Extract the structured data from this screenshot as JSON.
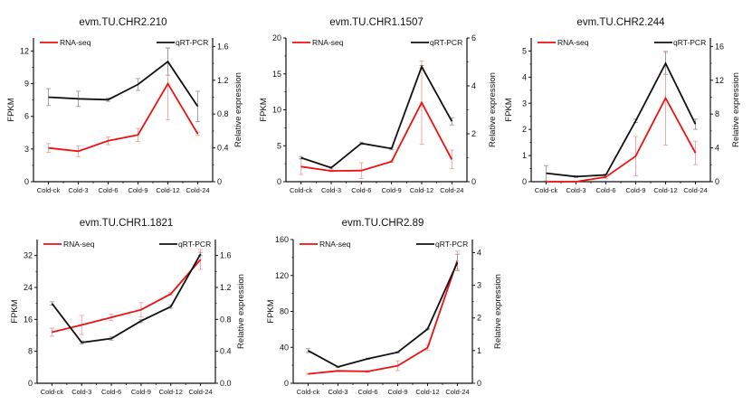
{
  "colors": {
    "rna": "#ee1111",
    "qpcr": "#111111",
    "rna_err": "#f4a0a0",
    "qpcr_err": "#9a9a9a"
  },
  "chart_data": [
    {
      "type": "line",
      "title": "evm.TU.CHR2.210",
      "categories": [
        "Cold-ck",
        "Cold-3",
        "Cold-6",
        "Cold-9",
        "Cold-12",
        "Cold-24"
      ],
      "ylabel": "FPKM",
      "ylabel_right": "Relative expression",
      "ylim": [
        0,
        13.2
      ],
      "yticks": [
        0,
        3,
        6,
        9,
        12
      ],
      "ytick_labels": [
        "0",
        "3",
        "6",
        "9",
        "12"
      ],
      "ylim_right": [
        0,
        1.7
      ],
      "yticks_right": [
        0,
        0.4,
        0.8,
        1.2,
        1.6
      ],
      "ytick_labels_right": [
        "0",
        "0.4",
        "0.8",
        "1.2",
        "1.6"
      ],
      "legend": [
        "RNA-seq",
        "qRT-PCR"
      ],
      "legend_position": "top",
      "series": [
        {
          "name": "RNA-seq",
          "axis": "left",
          "values": [
            3.1,
            2.8,
            3.75,
            4.3,
            9.0,
            4.4
          ],
          "errors": [
            0.4,
            0.5,
            0.35,
            0.6,
            3.3,
            0.15
          ]
        },
        {
          "name": "qRT-PCR",
          "axis": "right",
          "values": [
            1.0,
            0.98,
            0.97,
            1.15,
            1.42,
            0.89
          ],
          "errors": [
            0.1,
            0.09,
            0.02,
            0.07,
            0.16,
            0.18
          ]
        }
      ]
    },
    {
      "type": "line",
      "title": "evm.TU.CHR1.1507",
      "categories": [
        "Cold-ck",
        "Cold-3",
        "Cold-6",
        "Cold-9",
        "Cold-12",
        "Cold-24"
      ],
      "ylabel": "FPKM",
      "ylabel_right": "Relative expression",
      "ylim": [
        0,
        20
      ],
      "yticks": [
        0,
        5,
        10,
        15,
        20
      ],
      "ytick_labels": [
        "0",
        "5",
        "10",
        "15",
        "20"
      ],
      "ylim_right": [
        0,
        6
      ],
      "yticks_right": [
        0,
        2,
        4,
        6
      ],
      "ytick_labels_right": [
        "0",
        "2",
        "4",
        "6"
      ],
      "legend": [
        "RNA-seq",
        "qRT-PCR"
      ],
      "legend_position": "top",
      "series": [
        {
          "name": "RNA-seq",
          "axis": "left",
          "values": [
            2.1,
            1.5,
            1.55,
            2.8,
            11.0,
            3.1
          ],
          "errors": [
            1.1,
            0.1,
            1.1,
            0.1,
            5.8,
            1.3
          ]
        },
        {
          "name": "qRT-PCR",
          "axis": "right",
          "values": [
            1.0,
            0.58,
            1.6,
            1.38,
            4.8,
            2.52
          ],
          "errors": [
            0.05,
            0.05,
            0.05,
            0.05,
            0.05,
            0.15
          ]
        }
      ]
    },
    {
      "type": "line",
      "title": "evm.TU.CHR2.244",
      "categories": [
        "Cold-ck",
        "Cold-3",
        "Cold-6",
        "Cold-9",
        "Cold-12",
        "Cold-24"
      ],
      "ylabel": "FPKM",
      "ylabel_right": "Relative expression",
      "ylim": [
        0,
        5.5
      ],
      "yticks": [
        0,
        1,
        2,
        3,
        4,
        5
      ],
      "ytick_labels": [
        "0",
        "1",
        "2",
        "3",
        "4",
        "5"
      ],
      "ylim_right": [
        0,
        17
      ],
      "yticks_right": [
        0,
        4,
        8,
        12,
        16
      ],
      "ytick_labels_right": [
        "0",
        "4",
        "8",
        "12",
        "16"
      ],
      "legend": [
        "RNA-seq",
        "qRT-PCR"
      ],
      "legend_position": "top",
      "series": [
        {
          "name": "RNA-seq",
          "axis": "left",
          "values": [
            0.0,
            0.0,
            0.18,
            0.98,
            3.2,
            1.1
          ],
          "errors": [
            0.0,
            0.0,
            0.05,
            0.75,
            1.8,
            0.45
          ]
        },
        {
          "name": "qRT-PCR",
          "axis": "right",
          "values": [
            1.0,
            0.6,
            0.8,
            7.2,
            14.0,
            6.8
          ],
          "errors": [
            0.9,
            0.1,
            0.1,
            0.2,
            1.3,
            0.6
          ]
        }
      ]
    },
    {
      "type": "line",
      "title": "evm.TU.CHR1.1821",
      "categories": [
        "Cold-ck",
        "Cold-3",
        "Cold-6",
        "Cold-9",
        "Cold-12",
        "Cold-24"
      ],
      "ylabel": "FPKM",
      "ylabel_right": "Relative expression",
      "ylim": [
        0,
        36
      ],
      "yticks": [
        0,
        8,
        16,
        24,
        32
      ],
      "ytick_labels": [
        "0",
        "8",
        "16",
        "24",
        "32"
      ],
      "ylim_right": [
        0,
        1.8
      ],
      "yticks_right": [
        0,
        0.4,
        0.8,
        1.2,
        1.6
      ],
      "ytick_labels_right": [
        "0.0",
        "0.4",
        "0.8",
        "1.2",
        "1.6"
      ],
      "legend": [
        "RNA-seq",
        "qRT-PCR"
      ],
      "legend_position": "top",
      "series": [
        {
          "name": "RNA-seq",
          "axis": "left",
          "values": [
            12.8,
            14.6,
            16.5,
            18.4,
            22.4,
            31.0
          ],
          "errors": [
            1.0,
            2.4,
            0.8,
            1.8,
            0.3,
            2.5
          ]
        },
        {
          "name": "qRT-PCR",
          "axis": "right",
          "values": [
            1.0,
            0.51,
            0.56,
            0.78,
            0.96,
            1.62
          ],
          "errors": [
            0.02,
            0.02,
            0.02,
            0.02,
            0.02,
            0.02
          ]
        }
      ]
    },
    {
      "type": "line",
      "title": "evm.TU.CHR2.89",
      "categories": [
        "Cold-ck",
        "Cold-3",
        "Cold-6",
        "Cold-9",
        "Cold-12",
        "Cold-24"
      ],
      "ylabel": "FPKM",
      "ylabel_right": "Relative expression",
      "ylim": [
        0,
        160
      ],
      "yticks": [
        0,
        40,
        80,
        120,
        160
      ],
      "ytick_labels": [
        "0",
        "40",
        "80",
        "120",
        "160"
      ],
      "ylim_right": [
        0,
        4.4
      ],
      "yticks_right": [
        0,
        1,
        2,
        3,
        4
      ],
      "ytick_labels_right": [
        "0",
        "1",
        "2",
        "3",
        "4"
      ],
      "legend": [
        "RNA-seq",
        "qRT-PCR"
      ],
      "legend_position": "top",
      "series": [
        {
          "name": "RNA-seq",
          "axis": "left",
          "values": [
            10.5,
            13.8,
            13.2,
            19.5,
            39.5,
            137.0
          ],
          "errors": [
            0.5,
            0.5,
            1.0,
            5.5,
            3.0,
            10.0
          ]
        },
        {
          "name": "qRT-PCR",
          "axis": "right",
          "values": [
            1.0,
            0.5,
            0.75,
            0.95,
            1.66,
            3.7
          ],
          "errors": [
            0.06,
            0.02,
            0.02,
            0.02,
            0.02,
            0.25
          ]
        }
      ]
    }
  ]
}
